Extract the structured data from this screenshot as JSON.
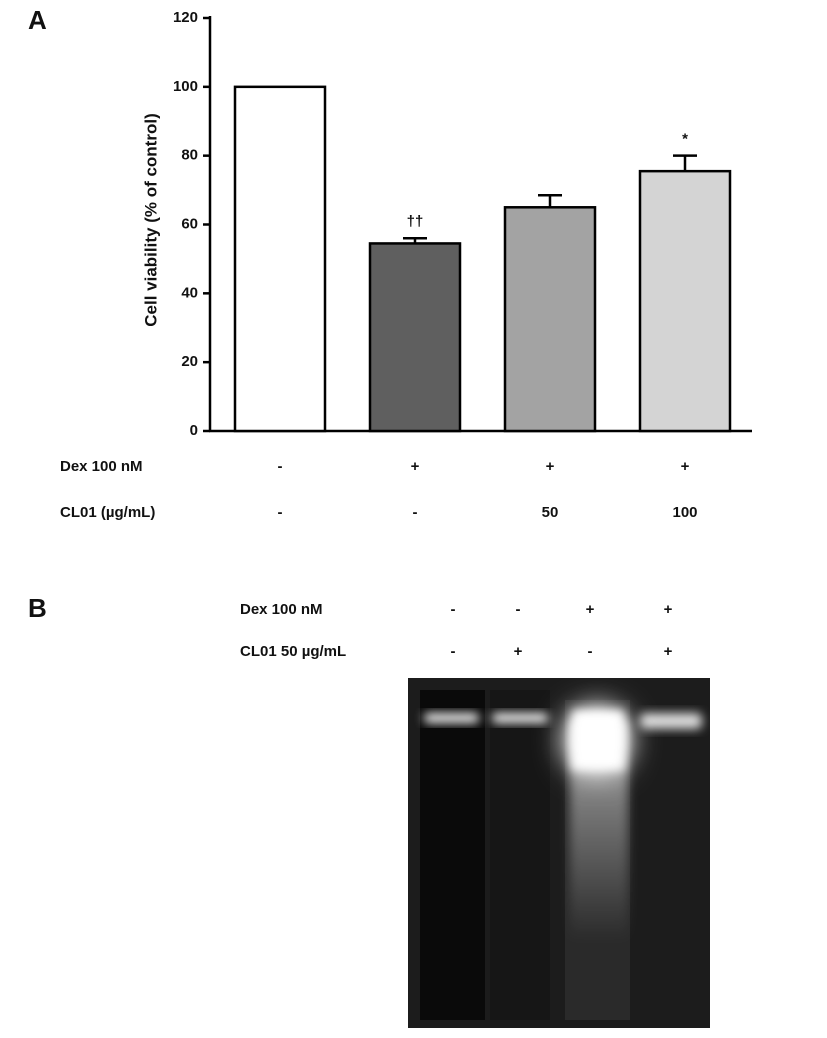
{
  "chart_data": {
    "type": "bar",
    "panel_label": "A",
    "y_label": "Cell viability (% of control)",
    "values": [
      100,
      54.5,
      65,
      75.5
    ],
    "errors": [
      null,
      1.5,
      3.5,
      4.5
    ],
    "annotations": [
      null,
      "††",
      null,
      "*"
    ],
    "colors": [
      "#ffffff",
      "#5f5f5f",
      "#a3a3a3",
      "#d4d4d4"
    ],
    "ylim": [
      0,
      120
    ],
    "yticks": [
      0,
      20,
      40,
      60,
      80,
      100,
      120
    ],
    "treatments": [
      {
        "name": "Dex 100 nM",
        "values": [
          "-",
          "+",
          "+",
          "+"
        ]
      },
      {
        "name": "CL01 (µg/mL)",
        "values": [
          "-",
          "-",
          "50",
          "100"
        ]
      }
    ]
  },
  "gel": {
    "panel_label": "B",
    "rows": [
      {
        "name": "Dex 100 nM",
        "values": [
          "-",
          "-",
          "+",
          "+"
        ]
      },
      {
        "name": "CL01 50 µg/mL",
        "values": [
          "-",
          "+",
          "-",
          "+"
        ]
      }
    ]
  }
}
